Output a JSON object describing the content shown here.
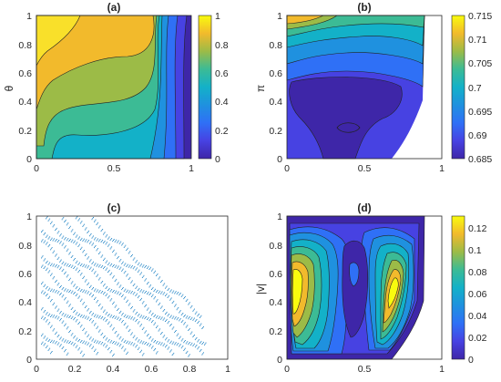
{
  "figure": {
    "panels": [
      {
        "title": "(a)",
        "ylabel": "θ",
        "xticks": [
          "0",
          "0.5",
          "1"
        ],
        "yticks": [
          "0",
          "0.2",
          "0.4",
          "0.6",
          "0.8",
          "1"
        ],
        "colorbar": [
          "0",
          "0.2",
          "0.4",
          "0.6",
          "0.8",
          "1"
        ]
      },
      {
        "title": "(b)",
        "ylabel": "π",
        "xticks": [
          "0",
          "0.5",
          "1"
        ],
        "yticks": [
          "0",
          "0.2",
          "0.4",
          "0.6",
          "0.8",
          "1"
        ],
        "colorbar": [
          "0.685",
          "0.69",
          "0.695",
          "0.7",
          "0.705",
          "0.71",
          "0.715"
        ]
      },
      {
        "title": "(c)",
        "ylabel": "",
        "xticks": [
          "0",
          "0.2",
          "0.4",
          "0.6",
          "0.8",
          "1"
        ],
        "yticks": [
          "0",
          "0.2",
          "0.4",
          "0.6",
          "0.8",
          "1"
        ],
        "colorbar": []
      },
      {
        "title": "(d)",
        "ylabel": "|v|",
        "xticks": [
          "0",
          "0.5",
          "1"
        ],
        "yticks": [
          "0",
          "0.2",
          "0.4",
          "0.6",
          "0.8",
          "1"
        ],
        "colorbar": [
          "0",
          "0.02",
          "0.04",
          "0.06",
          "0.08",
          "0.1",
          "0.12"
        ]
      }
    ]
  },
  "chart_data": [
    {
      "type": "heatmap",
      "title": "(a)",
      "xlabel": "",
      "ylabel": "θ",
      "xlim": [
        0,
        1
      ],
      "ylim": [
        0,
        1
      ],
      "clim": [
        0,
        1
      ],
      "colormap": "parula",
      "contour_levels": [
        0,
        0.1,
        0.2,
        0.3,
        0.4,
        0.5,
        0.6,
        0.7,
        0.8,
        0.9,
        1.0
      ]
    },
    {
      "type": "heatmap",
      "title": "(b)",
      "xlabel": "",
      "ylabel": "π",
      "xlim": [
        0,
        1
      ],
      "ylim": [
        0,
        1
      ],
      "clim": [
        0.685,
        0.715
      ],
      "colormap": "parula",
      "domain_x_max": 0.88
    },
    {
      "type": "scatter",
      "title": "(c)",
      "xlabel": "",
      "ylabel": "",
      "xlim": [
        0,
        1
      ],
      "ylim": [
        0,
        1
      ],
      "color": "#0072bd"
    },
    {
      "type": "heatmap",
      "title": "(d)",
      "xlabel": "",
      "ylabel": "|v|",
      "xlim": [
        0,
        1
      ],
      "ylim": [
        0,
        1
      ],
      "clim": [
        0,
        0.13
      ],
      "colormap": "parula",
      "domain_x_max": 0.88
    }
  ]
}
